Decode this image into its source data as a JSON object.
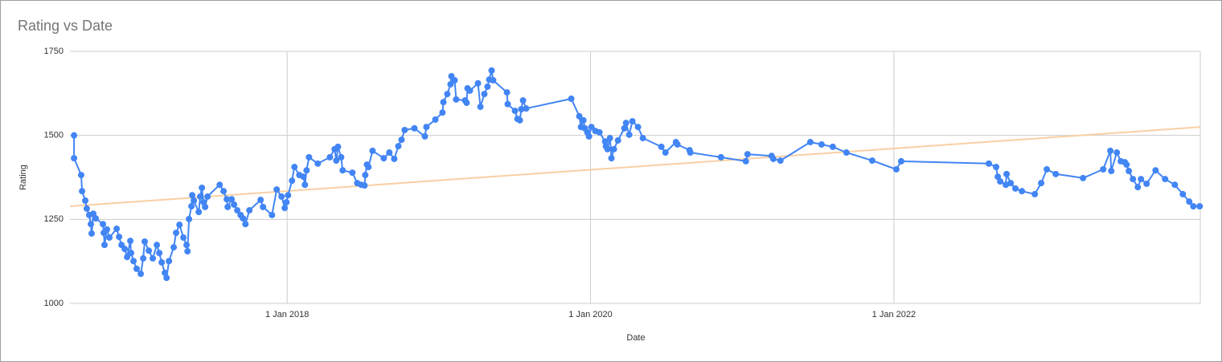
{
  "chart_data": {
    "type": "line",
    "title": "Rating vs Date",
    "x_label": "Date",
    "y_label": "Rating",
    "x": [
      2016.595,
      2016.595,
      2016.642,
      2016.648,
      2016.669,
      2016.679,
      2016.695,
      2016.706,
      2016.711,
      2016.722,
      2016.738,
      2016.786,
      2016.791,
      2016.796,
      2016.812,
      2016.828,
      2016.876,
      2016.892,
      2016.908,
      2016.929,
      2016.945,
      2016.966,
      2016.971,
      2016.987,
      2017.008,
      2017.035,
      2017.051,
      2017.061,
      2017.088,
      2017.114,
      2017.141,
      2017.157,
      2017.173,
      2017.194,
      2017.205,
      2017.221,
      2017.252,
      2017.268,
      2017.29,
      2017.316,
      2017.337,
      2017.343,
      2017.353,
      2017.369,
      2017.374,
      2017.385,
      2017.417,
      2017.427,
      2017.438,
      2017.449,
      2017.459,
      2017.475,
      2017.555,
      2017.581,
      2017.602,
      2017.608,
      2017.634,
      2017.65,
      2017.671,
      2017.693,
      2017.709,
      2017.725,
      2017.751,
      2017.825,
      2017.841,
      2017.9,
      2017.931,
      2017.963,
      2017.984,
      2017.995,
      2018.006,
      2018.032,
      2018.048,
      2018.08,
      2018.107,
      2018.117,
      2018.128,
      2018.144,
      2018.202,
      2018.282,
      2018.313,
      2018.324,
      2018.335,
      2018.356,
      2018.366,
      2018.43,
      2018.462,
      2018.488,
      2018.51,
      2018.515,
      2018.526,
      2018.536,
      2018.563,
      2018.637,
      2018.674,
      2018.706,
      2018.733,
      2018.754,
      2018.775,
      2018.839,
      2018.908,
      2018.918,
      2018.977,
      2019.024,
      2019.03,
      2019.056,
      2019.077,
      2019.083,
      2019.104,
      2019.114,
      2019.173,
      2019.183,
      2019.189,
      2019.205,
      2019.258,
      2019.274,
      2019.3,
      2019.321,
      2019.332,
      2019.348,
      2019.358,
      2019.449,
      2019.454,
      2019.502,
      2019.518,
      2019.534,
      2019.544,
      2019.555,
      2019.576,
      2019.873,
      2019.926,
      2019.937,
      2019.953,
      2019.963,
      2019.979,
      2019.99,
      2020.006,
      2020.032,
      2020.059,
      2020.096,
      2020.101,
      2020.112,
      2020.128,
      2020.138,
      2020.154,
      2020.181,
      2020.223,
      2020.234,
      2020.255,
      2020.276,
      2020.313,
      2020.345,
      2020.467,
      2020.494,
      2020.563,
      2020.573,
      2020.653,
      2020.658,
      2020.86,
      2021.024,
      2021.035,
      2021.194,
      2021.205,
      2021.252,
      2021.449,
      2021.523,
      2021.597,
      2021.687,
      2021.857,
      2022.016,
      2022.048,
      2022.626,
      2022.674,
      2022.685,
      2022.701,
      2022.738,
      2022.743,
      2022.77,
      2022.801,
      2022.844,
      2022.929,
      2022.971,
      2023.008,
      2023.067,
      2023.247,
      2023.38,
      2023.427,
      2023.433,
      2023.47,
      2023.496,
      2023.523,
      2023.534,
      2023.549,
      2023.576,
      2023.608,
      2023.629,
      2023.666,
      2023.725,
      2023.788,
      2023.852,
      2023.905,
      2023.947,
      2023.974,
      2024.016
    ],
    "series": [
      {
        "name": "Rating",
        "color": "#4285f4",
        "values": [
          1500,
          1432,
          1382,
          1334,
          1306,
          1282,
          1263,
          1236,
          1208,
          1267,
          1253,
          1236,
          1210,
          1174,
          1220,
          1196,
          1222,
          1198,
          1174,
          1162,
          1138,
          1186,
          1150,
          1126,
          1103,
          1088,
          1134,
          1184,
          1157,
          1134,
          1174,
          1150,
          1122,
          1091,
          1076,
          1126,
          1167,
          1210,
          1234,
          1196,
          1174,
          1155,
          1251,
          1289,
          1322,
          1306,
          1272,
          1318,
          1344,
          1301,
          1287,
          1318,
          1353,
          1334,
          1310,
          1287,
          1310,
          1294,
          1277,
          1263,
          1253,
          1236,
          1277,
          1308,
          1287,
          1263,
          1339,
          1318,
          1284,
          1301,
          1322,
          1365,
          1406,
          1382,
          1377,
          1353,
          1396,
          1435,
          1416,
          1435,
          1459,
          1425,
          1466,
          1435,
          1396,
          1389,
          1358,
          1353,
          1351,
          1382,
          1413,
          1406,
          1454,
          1432,
          1449,
          1430,
          1468,
          1487,
          1516,
          1521,
          1497,
          1525,
          1547,
          1568,
          1599,
          1623,
          1652,
          1676,
          1664,
          1607,
          1604,
          1597,
          1640,
          1633,
          1655,
          1585,
          1623,
          1645,
          1666,
          1693,
          1664,
          1628,
          1593,
          1573,
          1549,
          1545,
          1578,
          1604,
          1580,
          1609,
          1557,
          1525,
          1545,
          1521,
          1509,
          1497,
          1525,
          1513,
          1509,
          1482,
          1468,
          1459,
          1492,
          1432,
          1459,
          1485,
          1521,
          1537,
          1502,
          1542,
          1525,
          1492,
          1466,
          1449,
          1480,
          1473,
          1456,
          1449,
          1435,
          1423,
          1444,
          1439,
          1430,
          1425,
          1480,
          1473,
          1466,
          1449,
          1425,
          1399,
          1423,
          1416,
          1406,
          1377,
          1363,
          1353,
          1385,
          1358,
          1342,
          1334,
          1325,
          1358,
          1399,
          1385,
          1373,
          1399,
          1454,
          1394,
          1449,
          1423,
          1420,
          1413,
          1394,
          1370,
          1346,
          1370,
          1356,
          1396,
          1370,
          1353,
          1325,
          1303,
          1289,
          1289
        ]
      }
    ],
    "trendline": {
      "color": "#f9cfa5",
      "x": [
        2016.568,
        2024.02
      ],
      "values": [
        1289,
        1525
      ]
    },
    "xlim": [
      2016.568,
      2024.02
    ],
    "xticks": [
      {
        "value": 2018,
        "label": "1 Jan 2018"
      },
      {
        "value": 2020,
        "label": "1 Jan 2020"
      },
      {
        "value": 2022,
        "label": "1 Jan 2022"
      }
    ],
    "ylim": [
      1000,
      1750
    ],
    "yticks": [
      1000,
      1250,
      1500,
      1750
    ],
    "grid": true
  }
}
